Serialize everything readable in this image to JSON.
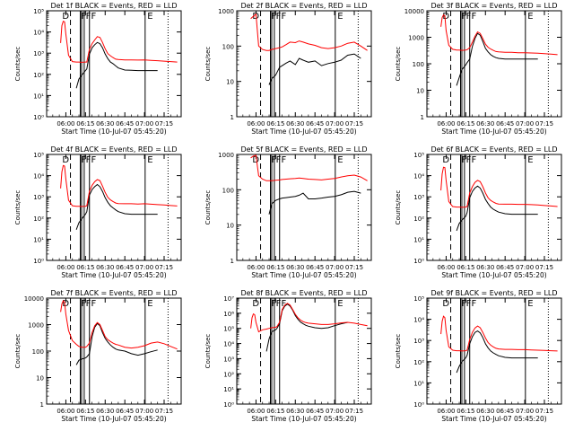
{
  "common": {
    "xlabel": "Start Time (10-Jul-07 05:45:20)",
    "ylabel": "Counts/sec",
    "x_tick_labels": [
      "06:00",
      "06:15",
      "06:30",
      "06:45",
      "07:00",
      "07:15"
    ],
    "x_ticks_minutes": [
      360,
      375,
      390,
      405,
      420,
      435
    ],
    "x_range_minutes": [
      345.33,
      448
    ],
    "series_colors": {
      "events": "#000000",
      "lld": "#ff0000"
    },
    "flag_letters": [
      "D",
      "F",
      "F",
      "F",
      "E"
    ]
  },
  "chart_data": [
    {
      "type": "line",
      "title": "Det 1f BLACK = Events, RED = LLD",
      "yscale": "log",
      "ylim": [
        1,
        100000
      ],
      "y_tick_labels": [
        "10⁰",
        "10¹",
        "10²",
        "10³",
        "10⁴",
        "10⁵"
      ],
      "y_tick_values": [
        1,
        10,
        100,
        1000,
        10000,
        100000
      ],
      "x": [
        356,
        357,
        358,
        359,
        360,
        362,
        365,
        368,
        370,
        372,
        375,
        376,
        378,
        380,
        382,
        384,
        386,
        388,
        390,
        392,
        394,
        396,
        398,
        400,
        405,
        410,
        415,
        420,
        425,
        430,
        435,
        440,
        445
      ],
      "series": [
        {
          "values": [
            null,
            null,
            null,
            null,
            null,
            null,
            null,
            22,
            60,
            90,
            150,
            180,
            900,
            1800,
            2500,
            3200,
            2800,
            1800,
            900,
            550,
            380,
            320,
            250,
            200,
            160,
            155,
            150,
            150,
            150,
            150,
            null,
            null,
            null
          ]
        },
        {
          "values": [
            3000,
            20000,
            32000,
            30000,
            8000,
            800,
            400,
            380,
            380,
            370,
            380,
            380,
            1500,
            2800,
            4200,
            6000,
            5500,
            3200,
            1600,
            950,
            750,
            620,
            520,
            500,
            480,
            480,
            470,
            480,
            460,
            440,
            420,
            400,
            380
          ]
        }
      ]
    },
    {
      "type": "line",
      "title": "Det 2f BLACK = Events, RED = LLD",
      "yscale": "log",
      "ylim": [
        1,
        1000
      ],
      "y_tick_labels": [
        "1",
        "10",
        "100",
        "1000"
      ],
      "y_tick_values": [
        1,
        10,
        100,
        1000
      ],
      "x": [
        356,
        358,
        360,
        362,
        365,
        368,
        370,
        372,
        375,
        378,
        380,
        383,
        386,
        390,
        393,
        396,
        400,
        405,
        410,
        415,
        420,
        425,
        430,
        435,
        440,
        445
      ],
      "series": [
        {
          "values": [
            null,
            null,
            null,
            null,
            null,
            null,
            8,
            12,
            15,
            25,
            28,
            33,
            38,
            30,
            45,
            40,
            35,
            38,
            28,
            32,
            35,
            40,
            55,
            60,
            45,
            null
          ]
        },
        {
          "values": [
            600,
            700,
            800,
            100,
            80,
            75,
            75,
            80,
            85,
            90,
            95,
            110,
            130,
            125,
            140,
            130,
            115,
            105,
            90,
            85,
            90,
            100,
            120,
            130,
            100,
            75
          ]
        }
      ]
    },
    {
      "type": "line",
      "title": "Det 3f BLACK = Events, RED = LLD",
      "yscale": "log",
      "ylim": [
        1,
        10000
      ],
      "y_tick_labels": [
        "1",
        "10",
        "100",
        "1000",
        "10000"
      ],
      "y_tick_values": [
        1,
        10,
        100,
        1000,
        10000
      ],
      "x": [
        356,
        357,
        358,
        359,
        360,
        362,
        365,
        368,
        370,
        372,
        375,
        376,
        378,
        380,
        382,
        384,
        386,
        388,
        390,
        392,
        394,
        396,
        398,
        400,
        405,
        410,
        415,
        420,
        425,
        430,
        435,
        440,
        445
      ],
      "series": [
        {
          "values": [
            null,
            null,
            null,
            null,
            null,
            null,
            null,
            15,
            30,
            60,
            90,
            110,
            150,
            450,
            900,
            1400,
            1200,
            700,
            380,
            280,
            220,
            190,
            170,
            160,
            150,
            150,
            150,
            150,
            150,
            150,
            null,
            null,
            null
          ]
        },
        {
          "values": [
            2500,
            5500,
            7000,
            6500,
            1800,
            500,
            350,
            330,
            330,
            320,
            330,
            340,
            400,
            650,
            1100,
            1600,
            1400,
            900,
            550,
            420,
            360,
            320,
            290,
            280,
            270,
            270,
            260,
            260,
            255,
            250,
            240,
            230,
            220
          ]
        }
      ]
    },
    {
      "type": "line",
      "title": "Det 4f BLACK = Events, RED = LLD",
      "yscale": "log",
      "ylim": [
        1,
        100000
      ],
      "y_tick_labels": [
        "10⁰",
        "10¹",
        "10²",
        "10³",
        "10⁴",
        "10⁵"
      ],
      "y_tick_values": [
        1,
        10,
        100,
        1000,
        10000,
        100000
      ],
      "x": [
        356,
        357,
        358,
        359,
        360,
        362,
        365,
        368,
        370,
        372,
        375,
        376,
        378,
        380,
        382,
        384,
        386,
        388,
        390,
        392,
        394,
        396,
        398,
        400,
        405,
        410,
        415,
        420,
        425,
        430,
        435,
        440,
        445
      ],
      "series": [
        {
          "values": [
            null,
            null,
            null,
            null,
            null,
            null,
            null,
            28,
            60,
            90,
            150,
            200,
            1200,
            2200,
            3000,
            3800,
            3000,
            1800,
            900,
            550,
            380,
            300,
            240,
            200,
            160,
            150,
            150,
            150,
            150,
            150,
            null,
            null,
            null
          ]
        },
        {
          "values": [
            2500,
            15000,
            30000,
            28000,
            7000,
            700,
            380,
            360,
            360,
            350,
            360,
            380,
            1800,
            3500,
            5200,
            6500,
            5800,
            3200,
            1600,
            950,
            720,
            600,
            510,
            480,
            470,
            470,
            460,
            470,
            450,
            430,
            410,
            390,
            370
          ]
        }
      ]
    },
    {
      "type": "line",
      "title": "Det 5f BLACK = Events, RED = LLD",
      "yscale": "log",
      "ylim": [
        1,
        1000
      ],
      "y_tick_labels": [
        "1",
        "10",
        "100",
        "1000"
      ],
      "y_tick_values": [
        1,
        10,
        100,
        1000
      ],
      "x": [
        356,
        358,
        360,
        362,
        365,
        368,
        370,
        372,
        375,
        378,
        380,
        383,
        386,
        390,
        393,
        396,
        400,
        405,
        410,
        415,
        420,
        425,
        430,
        435,
        440,
        445
      ],
      "series": [
        {
          "values": [
            null,
            null,
            null,
            null,
            null,
            null,
            20,
            40,
            50,
            55,
            58,
            60,
            62,
            65,
            70,
            80,
            55,
            55,
            58,
            62,
            65,
            72,
            85,
            90,
            80,
            null
          ]
        },
        {
          "values": [
            800,
            900,
            950,
            250,
            200,
            180,
            180,
            180,
            185,
            190,
            195,
            200,
            205,
            210,
            215,
            210,
            200,
            195,
            190,
            200,
            210,
            230,
            250,
            260,
            230,
            180
          ]
        }
      ]
    },
    {
      "type": "line",
      "title": "Det 6f BLACK = Events, RED = LLD",
      "yscale": "log",
      "ylim": [
        1,
        100000
      ],
      "y_tick_labels": [
        "10⁰",
        "10¹",
        "10²",
        "10³",
        "10⁴",
        "10⁵"
      ],
      "y_tick_values": [
        1,
        10,
        100,
        1000,
        10000,
        100000
      ],
      "x": [
        356,
        357,
        358,
        359,
        360,
        362,
        365,
        368,
        370,
        372,
        375,
        376,
        378,
        380,
        382,
        384,
        386,
        388,
        390,
        392,
        394,
        396,
        398,
        400,
        405,
        410,
        415,
        420,
        425,
        430,
        435,
        440,
        445
      ],
      "series": [
        {
          "values": [
            null,
            null,
            null,
            null,
            null,
            null,
            null,
            25,
            55,
            80,
            120,
            180,
            900,
            1800,
            2600,
            3200,
            2600,
            1500,
            750,
            480,
            330,
            260,
            220,
            190,
            160,
            150,
            150,
            150,
            150,
            150,
            null,
            null,
            null
          ]
        },
        {
          "values": [
            2000,
            12000,
            25000,
            24000,
            6000,
            600,
            350,
            330,
            330,
            320,
            330,
            350,
            1500,
            3000,
            4800,
            6000,
            5200,
            3000,
            1500,
            900,
            680,
            570,
            490,
            460,
            450,
            450,
            440,
            440,
            430,
            410,
            390,
            370,
            350
          ]
        }
      ]
    },
    {
      "type": "line",
      "title": "Det 7f BLACK = Events, RED = LLD",
      "yscale": "log",
      "ylim": [
        1,
        10000
      ],
      "y_tick_labels": [
        "1",
        "10",
        "100",
        "1000",
        "10000"
      ],
      "y_tick_values": [
        1,
        10,
        100,
        1000,
        10000
      ],
      "x": [
        356,
        357,
        358,
        359,
        360,
        362,
        365,
        368,
        370,
        372,
        375,
        376,
        378,
        380,
        382,
        384,
        386,
        388,
        390,
        392,
        394,
        396,
        398,
        400,
        405,
        410,
        415,
        420,
        425,
        430,
        435,
        440,
        445
      ],
      "series": [
        {
          "values": [
            null,
            null,
            null,
            null,
            null,
            null,
            null,
            30,
            45,
            50,
            55,
            60,
            80,
            350,
            800,
            1100,
            900,
            500,
            300,
            220,
            170,
            140,
            120,
            110,
            100,
            80,
            70,
            80,
            95,
            110,
            null,
            null,
            null
          ]
        },
        {
          "values": [
            3000,
            6000,
            8000,
            7000,
            2500,
            600,
            250,
            180,
            150,
            140,
            140,
            150,
            200,
            500,
            900,
            1200,
            1000,
            600,
            350,
            270,
            230,
            200,
            180,
            170,
            140,
            130,
            140,
            160,
            200,
            220,
            190,
            150,
            120
          ]
        }
      ]
    },
    {
      "type": "line",
      "title": "Det 8f BLACK = Events, RED = LLD",
      "yscale": "log",
      "ylim": [
        1,
        10000000
      ],
      "y_tick_labels": [
        "10⁰",
        "10¹",
        "10²",
        "10³",
        "10⁴",
        "10⁵",
        "10⁶",
        "10⁷"
      ],
      "y_tick_values": [
        1,
        10,
        100,
        1000,
        10000,
        100000,
        1000000,
        10000000
      ],
      "x": [
        356,
        357,
        358,
        359,
        360,
        362,
        365,
        368,
        370,
        372,
        375,
        376,
        378,
        380,
        382,
        384,
        386,
        388,
        390,
        392,
        394,
        396,
        398,
        400,
        405,
        410,
        415,
        420,
        425,
        430,
        435,
        440,
        445
      ],
      "series": [
        {
          "values": [
            null,
            null,
            null,
            null,
            null,
            null,
            null,
            3000,
            20000,
            60000,
            80000,
            100000,
            200000,
            1500000,
            3000000,
            4000000,
            3000000,
            1600000,
            700000,
            400000,
            260000,
            200000,
            160000,
            140000,
            110000,
            100000,
            110000,
            150000,
            200000,
            250000,
            null,
            null,
            null
          ]
        },
        {
          "values": [
            100000,
            500000,
            900000,
            800000,
            250000,
            60000,
            80000,
            90000,
            100000,
            110000,
            120000,
            130000,
            250000,
            1800000,
            3500000,
            4500000,
            3500000,
            1800000,
            850000,
            500000,
            350000,
            280000,
            240000,
            220000,
            200000,
            180000,
            180000,
            200000,
            230000,
            250000,
            220000,
            180000,
            150000
          ]
        }
      ]
    },
    {
      "type": "line",
      "title": "Det 9f BLACK = Events, RED = LLD",
      "yscale": "log",
      "ylim": [
        1,
        100000
      ],
      "y_tick_labels": [
        "10⁰",
        "10¹",
        "10²",
        "10³",
        "10⁴",
        "10⁵"
      ],
      "y_tick_values": [
        1,
        10,
        100,
        1000,
        10000,
        100000
      ],
      "x": [
        356,
        357,
        358,
        359,
        360,
        362,
        365,
        368,
        370,
        372,
        375,
        376,
        378,
        380,
        382,
        384,
        386,
        388,
        390,
        392,
        394,
        396,
        398,
        400,
        405,
        410,
        415,
        420,
        425,
        430,
        435,
        440,
        445
      ],
      "series": [
        {
          "values": [
            null,
            null,
            null,
            null,
            null,
            null,
            null,
            30,
            60,
            100,
            150,
            200,
            700,
            1500,
            2400,
            2800,
            2300,
            1400,
            700,
            450,
            320,
            260,
            220,
            190,
            160,
            150,
            150,
            150,
            150,
            150,
            null,
            null,
            null
          ]
        },
        {
          "values": [
            2000,
            8000,
            14000,
            12000,
            3000,
            500,
            350,
            330,
            330,
            320,
            330,
            350,
            1100,
            2400,
            3900,
            4800,
            4000,
            2400,
            1300,
            800,
            600,
            500,
            430,
            400,
            380,
            380,
            370,
            370,
            360,
            350,
            340,
            330,
            320
          ]
        }
      ]
    }
  ]
}
